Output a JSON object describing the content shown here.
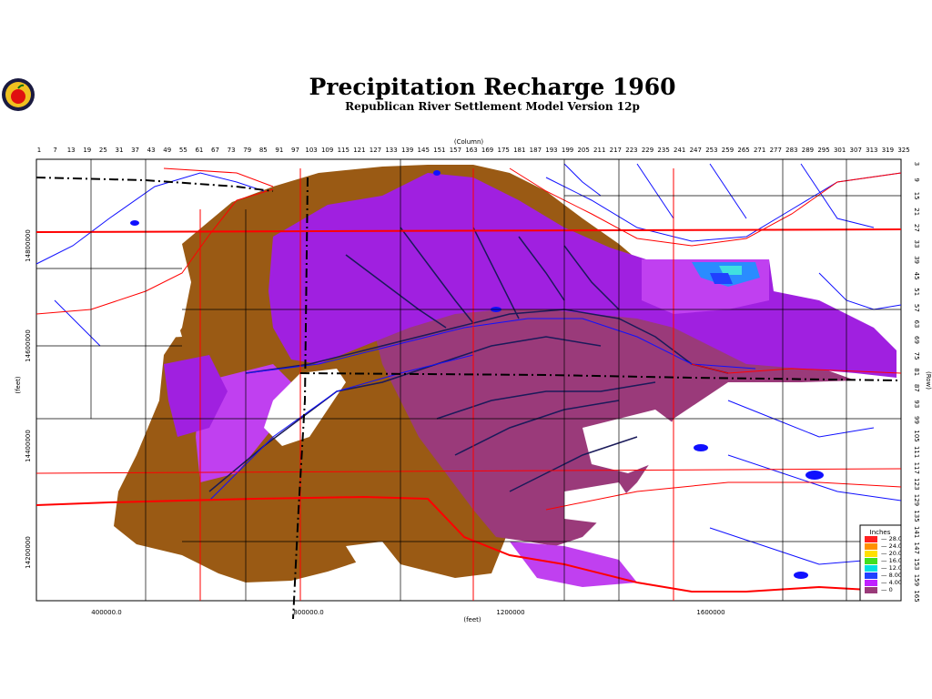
{
  "header": {
    "title": "Precipitation Recharge 1960",
    "subtitle": "Republican River Settlement Model Version 12p"
  },
  "axes": {
    "column_label": "(Column)",
    "row_label": "(Row)",
    "x_feet_label": "(feet)",
    "y_feet_label": "(feet)",
    "column_ticks": [
      "1",
      "7",
      "13",
      "19",
      "25",
      "31",
      "37",
      "43",
      "49",
      "55",
      "61",
      "67",
      "73",
      "79",
      "85",
      "91",
      "97",
      "103",
      "109",
      "115",
      "121",
      "127",
      "133",
      "139",
      "145",
      "151",
      "157",
      "163",
      "169",
      "175",
      "181",
      "187",
      "193",
      "199",
      "205",
      "211",
      "217",
      "223",
      "229",
      "235",
      "241",
      "247",
      "253",
      "259",
      "265",
      "271",
      "277",
      "283",
      "289",
      "295",
      "301",
      "307",
      "313",
      "319",
      "325"
    ],
    "row_ticks": [
      "3",
      "9",
      "15",
      "21",
      "27",
      "33",
      "39",
      "45",
      "51",
      "57",
      "63",
      "69",
      "75",
      "81",
      "87",
      "93",
      "99",
      "105",
      "111",
      "117",
      "123",
      "129",
      "135",
      "141",
      "147",
      "153",
      "159",
      "165"
    ],
    "x_feet_ticks": [
      "400000.0",
      "800000.0",
      "1200000",
      "1600000"
    ],
    "y_feet_ticks": [
      "14800000",
      "14600000",
      "14400000",
      "14200000"
    ]
  },
  "legend": {
    "title": "Inches",
    "items": [
      {
        "label": "28.0",
        "color": "#ff2020"
      },
      {
        "label": "24.0",
        "color": "#ff9000"
      },
      {
        "label": "20.0",
        "color": "#ffe000"
      },
      {
        "label": "16.0",
        "color": "#40e020"
      },
      {
        "label": "12.0",
        "color": "#00e0e0"
      },
      {
        "label": "8.00",
        "color": "#2040ff"
      },
      {
        "label": "4.00",
        "color": "#c020ff"
      },
      {
        "label": "0",
        "color": "#9a3a7a"
      }
    ]
  },
  "colors": {
    "brown": "#9a5a14",
    "magenta_dark": "#9a3a7a",
    "purple": "#a020e0",
    "violet": "#c040f0",
    "river": "#1010ff",
    "road": "#ff0000",
    "boundary": "#000000"
  },
  "logo": {
    "icon": "apple-logo-icon"
  }
}
